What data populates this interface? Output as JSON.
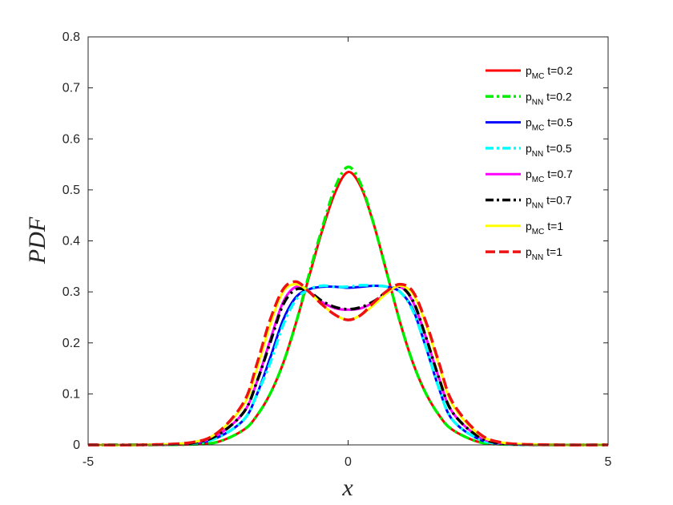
{
  "chart_data": {
    "type": "line",
    "xlabel": "x",
    "ylabel": "PDF",
    "xlim": [
      -5,
      5
    ],
    "ylim": [
      0,
      0.8
    ],
    "xticks": [
      "-5",
      "0",
      "5"
    ],
    "yticks": [
      "0",
      "0.1",
      "0.2",
      "0.3",
      "0.4",
      "0.5",
      "0.6",
      "0.7",
      "0.8"
    ],
    "legend_position": "top-right",
    "grid": false,
    "series": [
      {
        "name": "p_MC t=0.2",
        "legend": {
          "base": "p",
          "sub": "MC",
          "suffix": " t=0.2"
        },
        "color": "#ff0000",
        "dash": "solid",
        "x": [
          -5,
          -4,
          -3,
          -2.5,
          -2,
          -1.75,
          -1.5,
          -1.25,
          -1,
          -0.75,
          -0.5,
          -0.25,
          0,
          0.25,
          0.5,
          0.75,
          1,
          1.25,
          1.5,
          1.75,
          2,
          2.5,
          3,
          4,
          5
        ],
        "y": [
          0,
          0,
          0.001,
          0.006,
          0.03,
          0.058,
          0.1,
          0.16,
          0.24,
          0.33,
          0.42,
          0.495,
          0.535,
          0.505,
          0.43,
          0.335,
          0.24,
          0.16,
          0.1,
          0.058,
          0.03,
          0.006,
          0.001,
          0,
          0
        ]
      },
      {
        "name": "p_NN t=0.2",
        "legend": {
          "base": "p",
          "sub": "NN",
          "suffix": " t=0.2"
        },
        "color": "#00ee00",
        "dash": "dashdot",
        "x": [
          -5,
          -4,
          -3,
          -2.5,
          -2,
          -1.75,
          -1.5,
          -1.25,
          -1,
          -0.75,
          -0.5,
          -0.25,
          0,
          0.25,
          0.5,
          0.75,
          1,
          1.25,
          1.5,
          1.75,
          2,
          2.5,
          3,
          4,
          5
        ],
        "y": [
          0,
          0,
          0.001,
          0.006,
          0.03,
          0.058,
          0.1,
          0.16,
          0.24,
          0.335,
          0.425,
          0.505,
          0.545,
          0.51,
          0.43,
          0.335,
          0.24,
          0.16,
          0.1,
          0.058,
          0.03,
          0.006,
          0.001,
          0,
          0
        ]
      },
      {
        "name": "p_MC t=0.5",
        "legend": {
          "base": "p",
          "sub": "MC",
          "suffix": " t=0.5"
        },
        "color": "#0000ff",
        "dash": "solid",
        "x": [
          -5,
          -4,
          -3,
          -2.5,
          -2,
          -1.75,
          -1.5,
          -1.25,
          -1,
          -0.75,
          -0.5,
          -0.25,
          0,
          0.25,
          0.5,
          0.75,
          1,
          1.25,
          1.5,
          1.75,
          2,
          2.5,
          3,
          4,
          5
        ],
        "y": [
          0,
          0,
          0.003,
          0.015,
          0.05,
          0.1,
          0.17,
          0.245,
          0.29,
          0.305,
          0.31,
          0.31,
          0.308,
          0.31,
          0.312,
          0.31,
          0.3,
          0.265,
          0.19,
          0.11,
          0.05,
          0.012,
          0.002,
          0,
          0
        ]
      },
      {
        "name": "p_NN t=0.5",
        "legend": {
          "base": "p",
          "sub": "NN",
          "suffix": " t=0.5"
        },
        "color": "#00ffff",
        "dash": "dashdot",
        "x": [
          -5,
          -4,
          -3,
          -2.5,
          -2,
          -1.75,
          -1.5,
          -1.25,
          -1,
          -0.75,
          -0.5,
          -0.25,
          0,
          0.25,
          0.5,
          0.75,
          1,
          1.25,
          1.5,
          1.75,
          2,
          2.5,
          3,
          4,
          5
        ],
        "y": [
          0,
          0,
          0.003,
          0.015,
          0.05,
          0.1,
          0.16,
          0.235,
          0.285,
          0.305,
          0.312,
          0.31,
          0.31,
          0.313,
          0.312,
          0.31,
          0.3,
          0.262,
          0.19,
          0.11,
          0.05,
          0.012,
          0.002,
          0,
          0
        ]
      },
      {
        "name": "p_MC t=0.7",
        "legend": {
          "base": "p",
          "sub": "MC",
          "suffix": " t=0.7"
        },
        "color": "#ff00ff",
        "dash": "solid",
        "x": [
          -5,
          -4,
          -3,
          -2.5,
          -2,
          -1.75,
          -1.5,
          -1.25,
          -1,
          -0.75,
          -0.5,
          -0.25,
          0,
          0.25,
          0.5,
          0.75,
          1,
          1.25,
          1.5,
          1.75,
          2,
          2.5,
          3,
          4,
          5
        ],
        "y": [
          0,
          0,
          0.004,
          0.02,
          0.065,
          0.125,
          0.205,
          0.28,
          0.31,
          0.3,
          0.28,
          0.268,
          0.265,
          0.268,
          0.28,
          0.298,
          0.31,
          0.28,
          0.21,
          0.13,
          0.065,
          0.017,
          0.003,
          0,
          0
        ]
      },
      {
        "name": "p_NN t=0.7",
        "legend": {
          "base": "p",
          "sub": "NN",
          "suffix": " t=0.7"
        },
        "color": "#000000",
        "dash": "dashdot",
        "x": [
          -5,
          -4,
          -3,
          -2.5,
          -2,
          -1.75,
          -1.5,
          -1.25,
          -1,
          -0.75,
          -0.5,
          -0.25,
          0,
          0.25,
          0.5,
          0.75,
          1,
          1.25,
          1.5,
          1.75,
          2,
          2.5,
          3,
          4,
          5
        ],
        "y": [
          0,
          0,
          0.004,
          0.02,
          0.065,
          0.125,
          0.2,
          0.275,
          0.305,
          0.3,
          0.282,
          0.27,
          0.266,
          0.27,
          0.282,
          0.3,
          0.31,
          0.282,
          0.21,
          0.13,
          0.065,
          0.017,
          0.003,
          0,
          0
        ]
      },
      {
        "name": "p_MC t=1",
        "legend": {
          "base": "p",
          "sub": "MC",
          "suffix": " t=1"
        },
        "color": "#ffff00",
        "dash": "solid",
        "x": [
          -5,
          -4,
          -3,
          -2.5,
          -2,
          -1.75,
          -1.5,
          -1.25,
          -1,
          -0.75,
          -0.5,
          -0.25,
          0,
          0.25,
          0.5,
          0.75,
          1,
          1.25,
          1.5,
          1.75,
          2,
          2.5,
          3,
          4,
          5
        ],
        "y": [
          0,
          0,
          0.005,
          0.025,
          0.08,
          0.15,
          0.235,
          0.3,
          0.315,
          0.3,
          0.275,
          0.255,
          0.245,
          0.255,
          0.275,
          0.298,
          0.312,
          0.295,
          0.235,
          0.155,
          0.08,
          0.022,
          0.004,
          0,
          0
        ]
      },
      {
        "name": "p_NN t=1",
        "legend": {
          "base": "p",
          "sub": "NN",
          "suffix": " t=1"
        },
        "color": "#ee1111",
        "dash": "dashed",
        "x": [
          -5,
          -4,
          -3,
          -2.5,
          -2,
          -1.75,
          -1.5,
          -1.25,
          -1,
          -0.75,
          -0.5,
          -0.25,
          0,
          0.25,
          0.5,
          0.75,
          1,
          1.25,
          1.5,
          1.75,
          2,
          2.5,
          3,
          4,
          5
        ],
        "y": [
          0,
          0,
          0.005,
          0.025,
          0.085,
          0.16,
          0.245,
          0.305,
          0.32,
          0.3,
          0.275,
          0.255,
          0.245,
          0.255,
          0.28,
          0.302,
          0.315,
          0.3,
          0.24,
          0.16,
          0.085,
          0.024,
          0.004,
          0,
          0
        ]
      }
    ]
  }
}
